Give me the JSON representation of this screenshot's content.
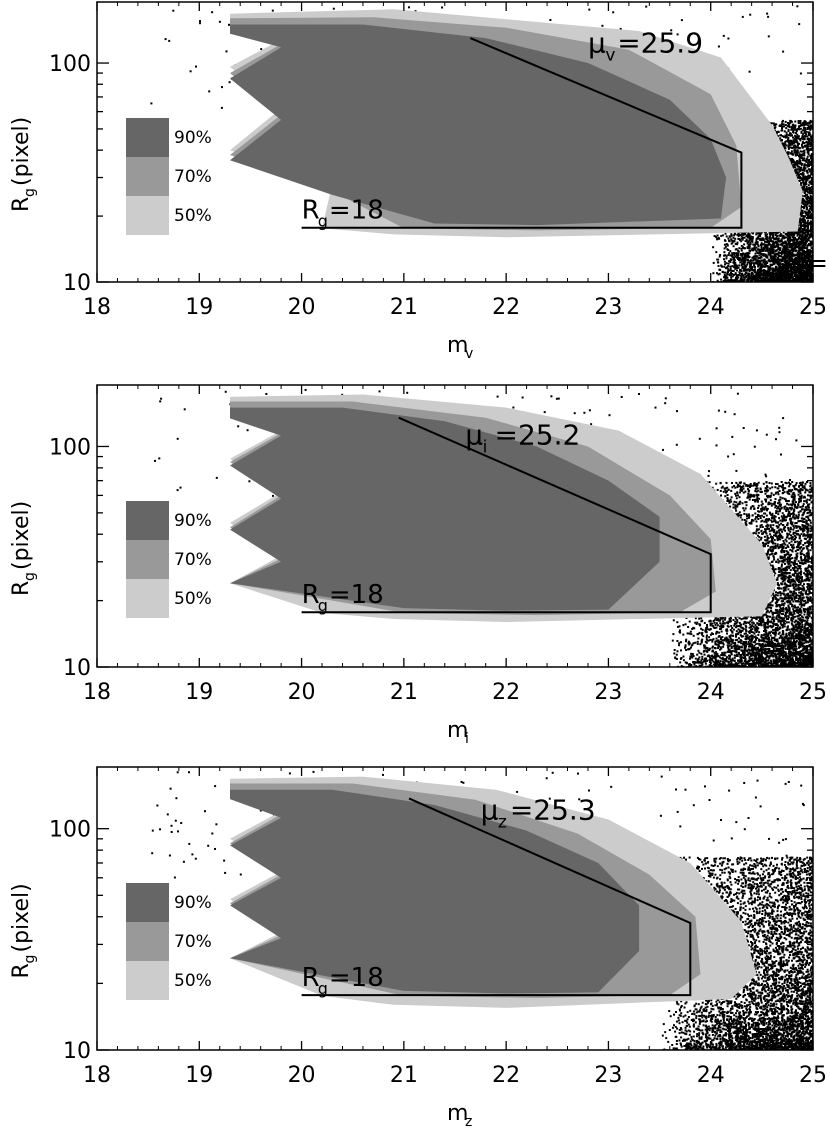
{
  "chart_data": [
    {
      "type": "heatmap",
      "xlabel": "m",
      "xlabel_sub": "v",
      "ylabel_parts": [
        "R",
        "g",
        "(pixel)"
      ],
      "xlim": [
        18,
        25
      ],
      "ylim": [
        10,
        190
      ],
      "y_scale": "log",
      "x_ticks": [
        18,
        19,
        20,
        21,
        22,
        23,
        24,
        25
      ],
      "y_ticks": [
        10,
        100
      ],
      "legend": {
        "position": "left",
        "entries": [
          "90%",
          "70%",
          "50%"
        ],
        "colors": [
          "#666666",
          "#999999",
          "#cccccc"
        ]
      },
      "boundary": [
        [
          21.65,
          130
        ],
        [
          24.3,
          39
        ],
        [
          24.3,
          17.7
        ],
        [
          20,
          17.7
        ]
      ],
      "annotations": {
        "mu": {
          "symbol": "μ",
          "sub": "v",
          "text": "=25.9",
          "at": [
            22.8,
            112
          ]
        },
        "rg": {
          "symbol": "R",
          "sub": "g",
          "text": "=18",
          "at": [
            20.0,
            19.5
          ]
        },
        "mlim": {
          "symbol": "m",
          "sub": "v",
          "text": "=",
          "at": [
            24.7,
            11.2
          ]
        }
      },
      "regions": {
        "50%": [
          [
            19.3,
            168
          ],
          [
            20.9,
            176
          ],
          [
            22.1,
            157
          ],
          [
            23.3,
            140
          ],
          [
            24.1,
            106
          ],
          [
            24.6,
            52
          ],
          [
            24.75,
            38
          ],
          [
            24.9,
            26
          ],
          [
            24.85,
            17
          ],
          [
            22,
            16
          ],
          [
            20.9,
            16.5
          ],
          [
            20.2,
            17.6
          ],
          [
            20.3,
            28
          ],
          [
            19.3,
            40
          ],
          [
            19.8,
            62
          ],
          [
            19.3,
            96
          ],
          [
            19.8,
            128
          ],
          [
            19.3,
            150
          ]
        ],
        "70%": [
          [
            19.3,
            160
          ],
          [
            20.7,
            162
          ],
          [
            22.0,
            145
          ],
          [
            23.2,
            115
          ],
          [
            24.0,
            72
          ],
          [
            24.25,
            42
          ],
          [
            24.3,
            22
          ],
          [
            24.0,
            17.7
          ],
          [
            22.3,
            17.2
          ],
          [
            21.0,
            17.6
          ],
          [
            20.3,
            26
          ],
          [
            19.3,
            38
          ],
          [
            19.8,
            58
          ],
          [
            19.3,
            90
          ],
          [
            19.8,
            122
          ],
          [
            19.3,
            142
          ]
        ],
        "90%": [
          [
            19.3,
            150
          ],
          [
            20.6,
            150
          ],
          [
            21.8,
            130
          ],
          [
            22.8,
            100
          ],
          [
            23.6,
            68
          ],
          [
            24.0,
            45
          ],
          [
            24.15,
            30
          ],
          [
            24.1,
            19.5
          ],
          [
            22.3,
            18.2
          ],
          [
            21.3,
            18.5
          ],
          [
            20.3,
            25
          ],
          [
            19.3,
            36
          ],
          [
            19.8,
            55
          ],
          [
            19.3,
            85
          ],
          [
            19.8,
            118
          ],
          [
            19.3,
            136
          ]
        ]
      },
      "scatter": {
        "xrange": [
          24.0,
          25
        ],
        "yrange": [
          10,
          55
        ],
        "density": 1.0
      }
    },
    {
      "type": "heatmap",
      "xlabel": "m",
      "xlabel_sub": "i",
      "ylabel_parts": [
        "R",
        "g",
        "(pixel)"
      ],
      "xlim": [
        18,
        25
      ],
      "ylim": [
        10,
        190
      ],
      "y_scale": "log",
      "x_ticks": [
        18,
        19,
        20,
        21,
        22,
        23,
        24,
        25
      ],
      "y_ticks": [
        10,
        100
      ],
      "legend": {
        "position": "left",
        "entries": [
          "90%",
          "70%",
          "50%"
        ],
        "colors": [
          "#666666",
          "#999999",
          "#cccccc"
        ]
      },
      "boundary": [
        [
          20.95,
          135
        ],
        [
          24.0,
          32.5
        ],
        [
          24.0,
          17.7
        ],
        [
          20,
          17.7
        ]
      ],
      "annotations": {
        "mu": {
          "symbol": "μ",
          "sub": "i",
          "text": "=25.2",
          "at": [
            21.6,
            102
          ]
        },
        "rg": {
          "symbol": "R",
          "sub": "g",
          "text": "=18",
          "at": [
            20.0,
            19.5
          ]
        },
        "mlim": {
          "symbol": "m",
          "sub": "i",
          "text": "=",
          "at": [
            24.3,
            11.2
          ]
        }
      },
      "regions": {
        "50%": [
          [
            19.3,
            168
          ],
          [
            20.6,
            172
          ],
          [
            22.0,
            150
          ],
          [
            23.1,
            118
          ],
          [
            23.9,
            75
          ],
          [
            24.5,
            36
          ],
          [
            24.65,
            24
          ],
          [
            24.5,
            17
          ],
          [
            22,
            16
          ],
          [
            20.9,
            16.5
          ],
          [
            20.2,
            17.6
          ],
          [
            19.3,
            24
          ],
          [
            19.8,
            32
          ],
          [
            19.3,
            45
          ],
          [
            19.8,
            62
          ],
          [
            19.3,
            88
          ],
          [
            19.8,
            118
          ],
          [
            19.3,
            146
          ]
        ],
        "70%": [
          [
            19.3,
            160
          ],
          [
            20.5,
            160
          ],
          [
            21.8,
            135
          ],
          [
            22.8,
            100
          ],
          [
            23.6,
            60
          ],
          [
            24.0,
            38
          ],
          [
            24.05,
            22
          ],
          [
            23.7,
            17.7
          ],
          [
            22.3,
            17.2
          ],
          [
            21.0,
            17.6
          ],
          [
            19.3,
            24
          ],
          [
            19.8,
            31
          ],
          [
            19.3,
            43
          ],
          [
            19.8,
            60
          ],
          [
            19.3,
            85
          ],
          [
            19.8,
            115
          ],
          [
            19.3,
            140
          ]
        ],
        "90%": [
          [
            19.3,
            150
          ],
          [
            20.4,
            150
          ],
          [
            21.4,
            130
          ],
          [
            22.3,
            100
          ],
          [
            23.0,
            70
          ],
          [
            23.5,
            48
          ],
          [
            23.5,
            30
          ],
          [
            23.0,
            18.2
          ],
          [
            22.0,
            18.0
          ],
          [
            21.0,
            18.5
          ],
          [
            19.3,
            24
          ],
          [
            19.8,
            30
          ],
          [
            19.3,
            42
          ],
          [
            19.8,
            58
          ],
          [
            19.3,
            82
          ],
          [
            19.8,
            112
          ],
          [
            19.3,
            134
          ]
        ]
      },
      "scatter": {
        "xrange": [
          23.6,
          25
        ],
        "yrange": [
          10,
          70
        ],
        "density": 1.0
      }
    },
    {
      "type": "heatmap",
      "xlabel": "m",
      "xlabel_sub": "z",
      "ylabel_parts": [
        "R",
        "g",
        "(pixel)"
      ],
      "xlim": [
        18,
        25
      ],
      "ylim": [
        10,
        190
      ],
      "y_scale": "log",
      "x_ticks": [
        18,
        19,
        20,
        21,
        22,
        23,
        24,
        25
      ],
      "y_ticks": [
        10,
        100
      ],
      "legend": {
        "position": "left",
        "entries": [
          "90%",
          "70%",
          "50%"
        ],
        "colors": [
          "#666666",
          "#999999",
          "#cccccc"
        ]
      },
      "boundary": [
        [
          21.05,
          137
        ],
        [
          23.8,
          37.5
        ],
        [
          23.8,
          17.7
        ],
        [
          20,
          17.7
        ]
      ],
      "annotations": {
        "mu": {
          "symbol": "μ",
          "sub": "z",
          "text": "=25.3",
          "at": [
            21.75,
            110
          ]
        },
        "rg": {
          "symbol": "R",
          "sub": "g",
          "text": "=18",
          "at": [
            20.0,
            19.5
          ]
        },
        "mlim": {
          "symbol": "m",
          "sub": "z",
          "text": "=",
          "at": [
            24.15,
            11.2
          ]
        }
      },
      "regions": {
        "50%": [
          [
            19.3,
            168
          ],
          [
            20.6,
            172
          ],
          [
            21.9,
            150
          ],
          [
            23.0,
            110
          ],
          [
            23.8,
            70
          ],
          [
            24.3,
            38
          ],
          [
            24.45,
            22
          ],
          [
            24.2,
            17
          ],
          [
            22,
            15.5
          ],
          [
            20.9,
            16.0
          ],
          [
            20.2,
            17.6
          ],
          [
            19.3,
            26
          ],
          [
            19.8,
            34
          ],
          [
            19.3,
            48
          ],
          [
            19.8,
            64
          ],
          [
            19.3,
            90
          ],
          [
            19.8,
            120
          ],
          [
            19.3,
            148
          ]
        ],
        "70%": [
          [
            19.3,
            160
          ],
          [
            20.5,
            160
          ],
          [
            21.7,
            135
          ],
          [
            22.7,
            95
          ],
          [
            23.4,
            62
          ],
          [
            23.85,
            40
          ],
          [
            23.9,
            22
          ],
          [
            23.6,
            17.7
          ],
          [
            22.3,
            17.2
          ],
          [
            21.0,
            17.6
          ],
          [
            19.3,
            26
          ],
          [
            19.8,
            33
          ],
          [
            19.3,
            46
          ],
          [
            19.8,
            62
          ],
          [
            19.3,
            86
          ],
          [
            19.8,
            116
          ],
          [
            19.3,
            142
          ]
        ],
        "90%": [
          [
            19.3,
            150
          ],
          [
            20.3,
            150
          ],
          [
            21.3,
            128
          ],
          [
            22.2,
            98
          ],
          [
            22.9,
            70
          ],
          [
            23.3,
            45
          ],
          [
            23.3,
            28
          ],
          [
            22.9,
            18.2
          ],
          [
            22.0,
            18.0
          ],
          [
            21.0,
            18.5
          ],
          [
            19.3,
            26
          ],
          [
            19.8,
            32
          ],
          [
            19.3,
            45
          ],
          [
            19.8,
            60
          ],
          [
            19.3,
            84
          ],
          [
            19.8,
            112
          ],
          [
            19.3,
            136
          ]
        ]
      },
      "scatter": {
        "xrange": [
          23.5,
          25
        ],
        "yrange": [
          10,
          75
        ],
        "density": 1.0
      }
    }
  ]
}
